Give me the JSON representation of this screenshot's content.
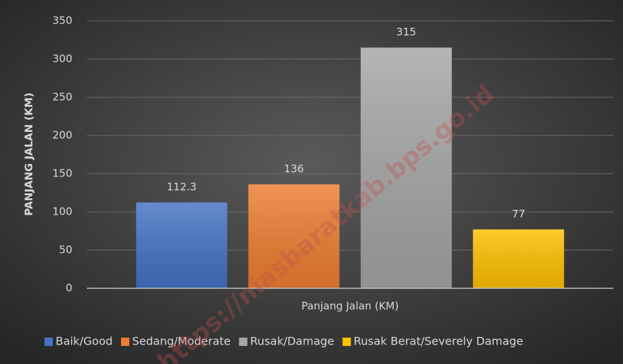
{
  "chart_data": {
    "type": "bar",
    "ylabel": "PANJANG JALAN (KM)",
    "categories": [
      "Panjang Jalan (KM)"
    ],
    "series": [
      {
        "name": "Baik/Good",
        "color": "#4472c4",
        "values": [
          112.3
        ]
      },
      {
        "name": "Sedang/Moderate",
        "color": "#ed7d31",
        "values": [
          136
        ]
      },
      {
        "name": "Rusak/Damage",
        "color": "#a5a5a5",
        "values": [
          315
        ]
      },
      {
        "name": "Rusak Berat/Severely Damage",
        "color": "#ffc000",
        "values": [
          77
        ]
      }
    ],
    "ylim": [
      0,
      350
    ],
    "yticks": [
      0,
      50,
      100,
      150,
      200,
      250,
      300,
      350
    ],
    "grid": true,
    "legend": "bottom",
    "data_labels": true,
    "watermark": "https://niasbaratkab.bps.go.id"
  }
}
